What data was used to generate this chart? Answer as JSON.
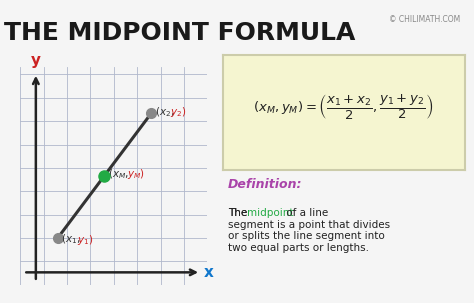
{
  "bg_color": "#f5f5f5",
  "title": "THE MIDPOINT FORMULA",
  "title_color": "#1a1a1a",
  "title_fontsize": 18,
  "copyright": "© CHILIMATH.COM",
  "graph_bg": "#e8eaf0",
  "grid_color": "#b0b8cc",
  "axis_color": "#222222",
  "line_color": "#333333",
  "p1": [
    1.2,
    1.5
  ],
  "p2": [
    4.2,
    5.5
  ],
  "pm": [
    2.7,
    3.5
  ],
  "p1_color": "#888888",
  "p2_color": "#888888",
  "pm_color": "#22aa44",
  "formula_bg": "#f5f5d0",
  "formula_border": "#ccccaa",
  "def_color": "#aa44aa",
  "midpoint_color": "#22aa44",
  "text_color": "#222222",
  "x1_color": "#3366cc",
  "y1_color": "#cc2222",
  "x2_color": "#3366cc",
  "y2_color": "#cc2222",
  "xm_color": "#333333",
  "ym_color": "#333333"
}
